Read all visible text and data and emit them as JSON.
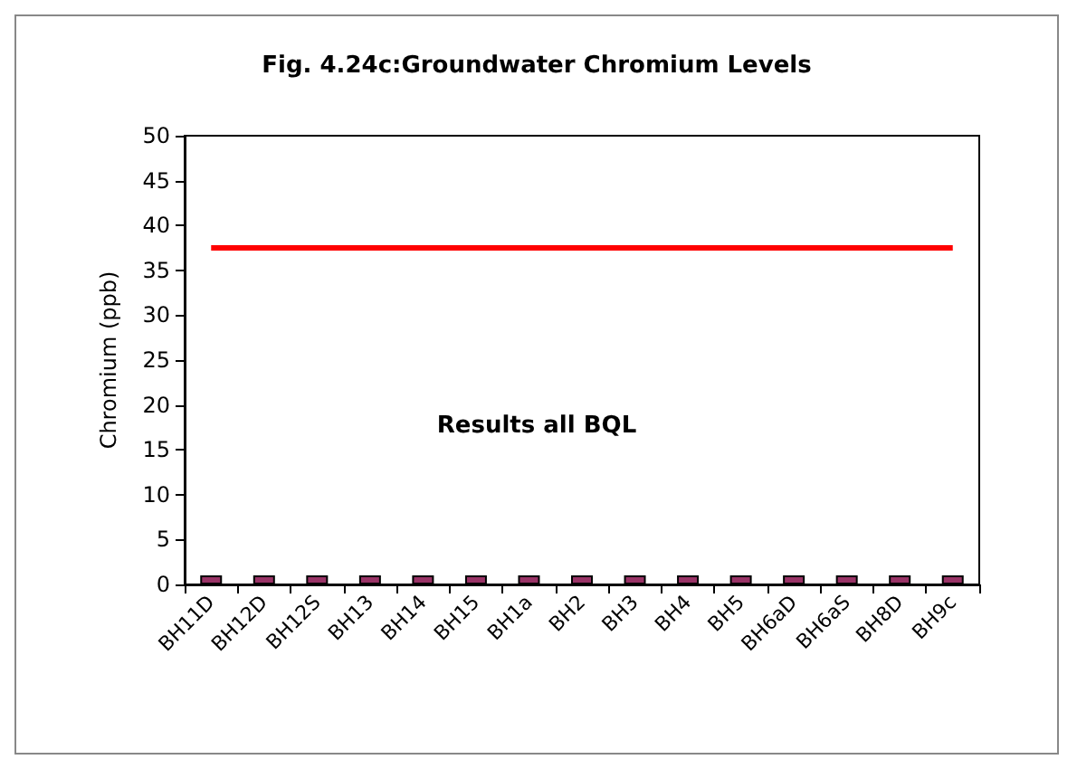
{
  "chart_data": {
    "type": "bar",
    "title": "Fig. 4.24c:Groundwater Chromium Levels",
    "ylabel": "Chromium (ppb)",
    "annotations": [
      "Results all BQL"
    ],
    "categories": [
      "BH11D",
      "BH12D",
      "BH12S",
      "BH13",
      "BH14",
      "BH15",
      "BH1a",
      "BH2",
      "BH3",
      "BH4",
      "BH5",
      "BH6aD",
      "BH6aS",
      "BH8D",
      "BH9c"
    ],
    "series": [
      {
        "color": "#993366",
        "values": [
          1,
          1,
          1,
          1,
          1,
          1,
          1,
          1,
          1,
          1,
          1,
          1,
          1,
          1,
          1
        ]
      },
      {
        "type": "line",
        "color": "#ff0000",
        "values": [
          37.5,
          37.5,
          37.5,
          37.5,
          37.5,
          37.5,
          37.5,
          37.5,
          37.5,
          37.5,
          37.5,
          37.5,
          37.5,
          37.5,
          37.5
        ]
      }
    ],
    "ylim": [
      0,
      50
    ],
    "yticks": [
      0,
      5,
      10,
      15,
      20,
      25,
      30,
      35,
      40,
      45,
      50
    ],
    "grid": false,
    "marker": "none"
  }
}
